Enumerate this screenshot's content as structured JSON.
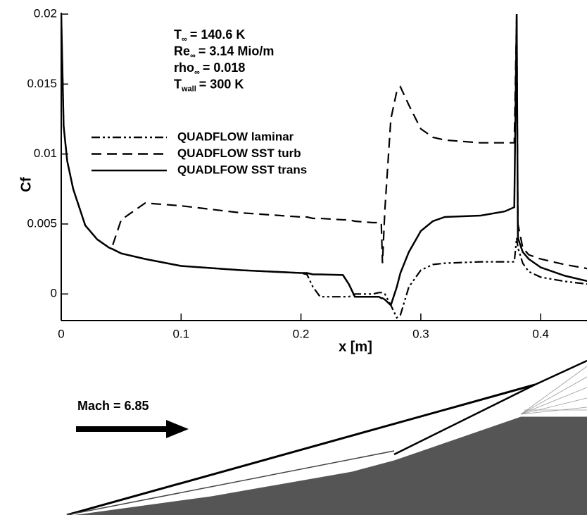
{
  "chart_data": {
    "type": "line",
    "x_label": "x [m]",
    "y_label": "Cf",
    "annotations": [
      {
        "symbol": "T",
        "subscript": "∞",
        "text": "= 140.6 K"
      },
      {
        "symbol": "Re",
        "subscript": "∞",
        "text": "= 3.14 Mio/m"
      },
      {
        "symbol": "rho",
        "subscript": "∞",
        "text": "= 0.018"
      },
      {
        "symbol": "T",
        "subscript": "wall",
        "text": "= 300 K"
      }
    ],
    "x": [
      0,
      0.002,
      0.005,
      0.01,
      0.02,
      0.03,
      0.04,
      0.043,
      0.05,
      0.07,
      0.1,
      0.15,
      0.2,
      0.205,
      0.21,
      0.216,
      0.235,
      0.24,
      0.245,
      0.26,
      0.265,
      0.267,
      0.268,
      0.27,
      0.275,
      0.28,
      0.283,
      0.29,
      0.3,
      0.31,
      0.32,
      0.35,
      0.37,
      0.378,
      0.38,
      0.381,
      0.385,
      0.39,
      0.4,
      0.42,
      0.44
    ],
    "series": [
      {
        "name": "QUADFLOW laminar",
        "color": "#000000",
        "line_style": "dash-dot-dot",
        "values": [
          0.02,
          0.012,
          0.0095,
          0.0075,
          0.0049,
          0.0039,
          0.0033,
          0.0032,
          0.0029,
          0.0025,
          0.002,
          0.0017,
          0.0015,
          0.0014,
          0.0005,
          -0.0002,
          -0.0002,
          -0.0002,
          0.0,
          0.0,
          0.0001,
          0.0001,
          0.0001,
          0.0,
          -0.0008,
          -0.0017,
          -0.0015,
          0.0005,
          0.0017,
          0.0021,
          0.0022,
          0.0023,
          0.0023,
          0.0023,
          0.004,
          0.0033,
          0.0022,
          0.0016,
          0.0012,
          0.0009,
          0.0007
        ]
      },
      {
        "name": "QUADFLOW SST turb",
        "color": "#000000",
        "line_style": "dashed",
        "values": [
          null,
          null,
          null,
          null,
          null,
          null,
          null,
          0.0035,
          0.0053,
          0.0065,
          0.0063,
          0.0058,
          0.0055,
          0.0055,
          0.0054,
          0.0054,
          0.0053,
          0.0053,
          0.0052,
          0.0051,
          0.0051,
          0.0051,
          0.0022,
          0.006,
          0.0125,
          0.0145,
          0.0148,
          0.0135,
          0.0118,
          0.0112,
          0.011,
          0.0108,
          0.0108,
          0.0108,
          0.02,
          0.005,
          0.0033,
          0.0028,
          0.0025,
          0.0021,
          0.0018
        ]
      },
      {
        "name": "QUADLFOW SST trans",
        "color": "#000000",
        "line_style": "solid",
        "values": [
          0.02,
          0.012,
          0.0095,
          0.0075,
          0.0049,
          0.0039,
          0.0033,
          0.0032,
          0.0029,
          0.0025,
          0.002,
          0.0017,
          0.0015,
          0.0015,
          0.0014,
          0.0014,
          0.00135,
          0.0007,
          -0.0002,
          -0.0002,
          -0.0002,
          -0.0003,
          -0.0003,
          -0.0004,
          -0.0008,
          0.0005,
          0.0015,
          0.003,
          0.0045,
          0.0052,
          0.0055,
          0.0056,
          0.0059,
          0.0062,
          0.02,
          0.004,
          0.003,
          0.0025,
          0.0019,
          0.0013,
          0.0009
        ]
      }
    ],
    "xlim": [
      0,
      0.44
    ],
    "ylim": [
      -0.0019,
      0.02
    ],
    "xticks": [
      0,
      0.1,
      0.2,
      0.3,
      0.4
    ],
    "yticks": [
      0,
      0.005,
      0.01,
      0.015,
      0.02
    ],
    "grid": false
  },
  "schematic": {
    "flow_label": "Mach = 6.85"
  }
}
